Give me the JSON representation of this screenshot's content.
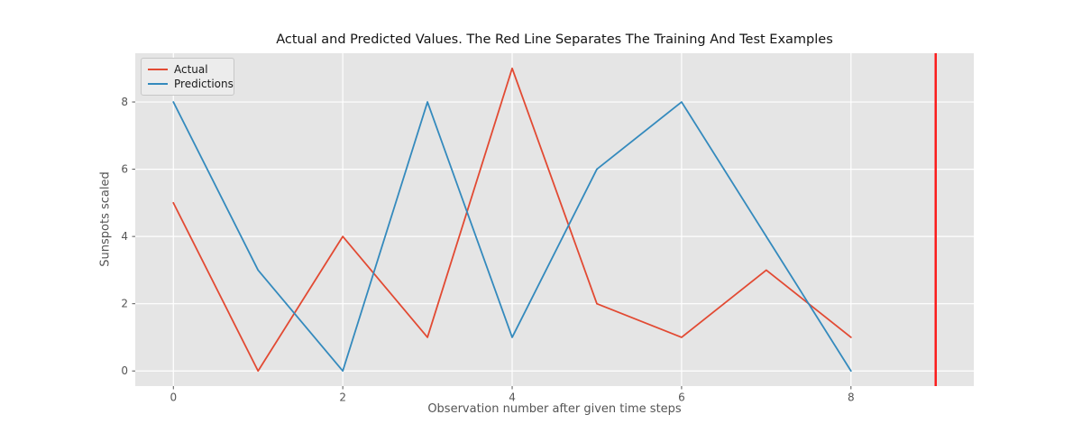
{
  "chart_data": {
    "type": "line",
    "title": "Actual and Predicted Values. The Red Line Separates The Training And Test Examples",
    "xlabel": "Observation number after given time steps",
    "ylabel": "Sunspots scaled",
    "x": [
      0,
      1,
      2,
      3,
      4,
      5,
      6,
      7,
      8
    ],
    "series": [
      {
        "name": "Actual",
        "color": "#e24a33",
        "values": [
          5,
          0,
          4,
          1,
          9,
          2,
          1,
          3,
          1
        ]
      },
      {
        "name": "Predictions",
        "color": "#348abd",
        "values": [
          8,
          3,
          0,
          8,
          1,
          6,
          8,
          4,
          0
        ]
      }
    ],
    "separator_line": {
      "x": 9,
      "color": "#fb1c1c"
    },
    "xlim": [
      -0.45,
      9.45
    ],
    "ylim": [
      -0.45,
      9.45
    ],
    "xticks": [
      "0",
      "2",
      "4",
      "6",
      "8"
    ],
    "yticks": [
      "0",
      "2",
      "4",
      "6",
      "8"
    ],
    "xtick_values": [
      0,
      2,
      4,
      6,
      8
    ],
    "ytick_values": [
      0,
      2,
      4,
      6,
      8
    ],
    "grid": true,
    "legend_position": "upper left",
    "style": {
      "plot_bg": "#e5e5e5",
      "grid_color": "#ffffff",
      "tick_color": "#555555",
      "tick_label_color": "#555555",
      "axis_label_color": "#555555",
      "title_color": "#141414"
    }
  }
}
